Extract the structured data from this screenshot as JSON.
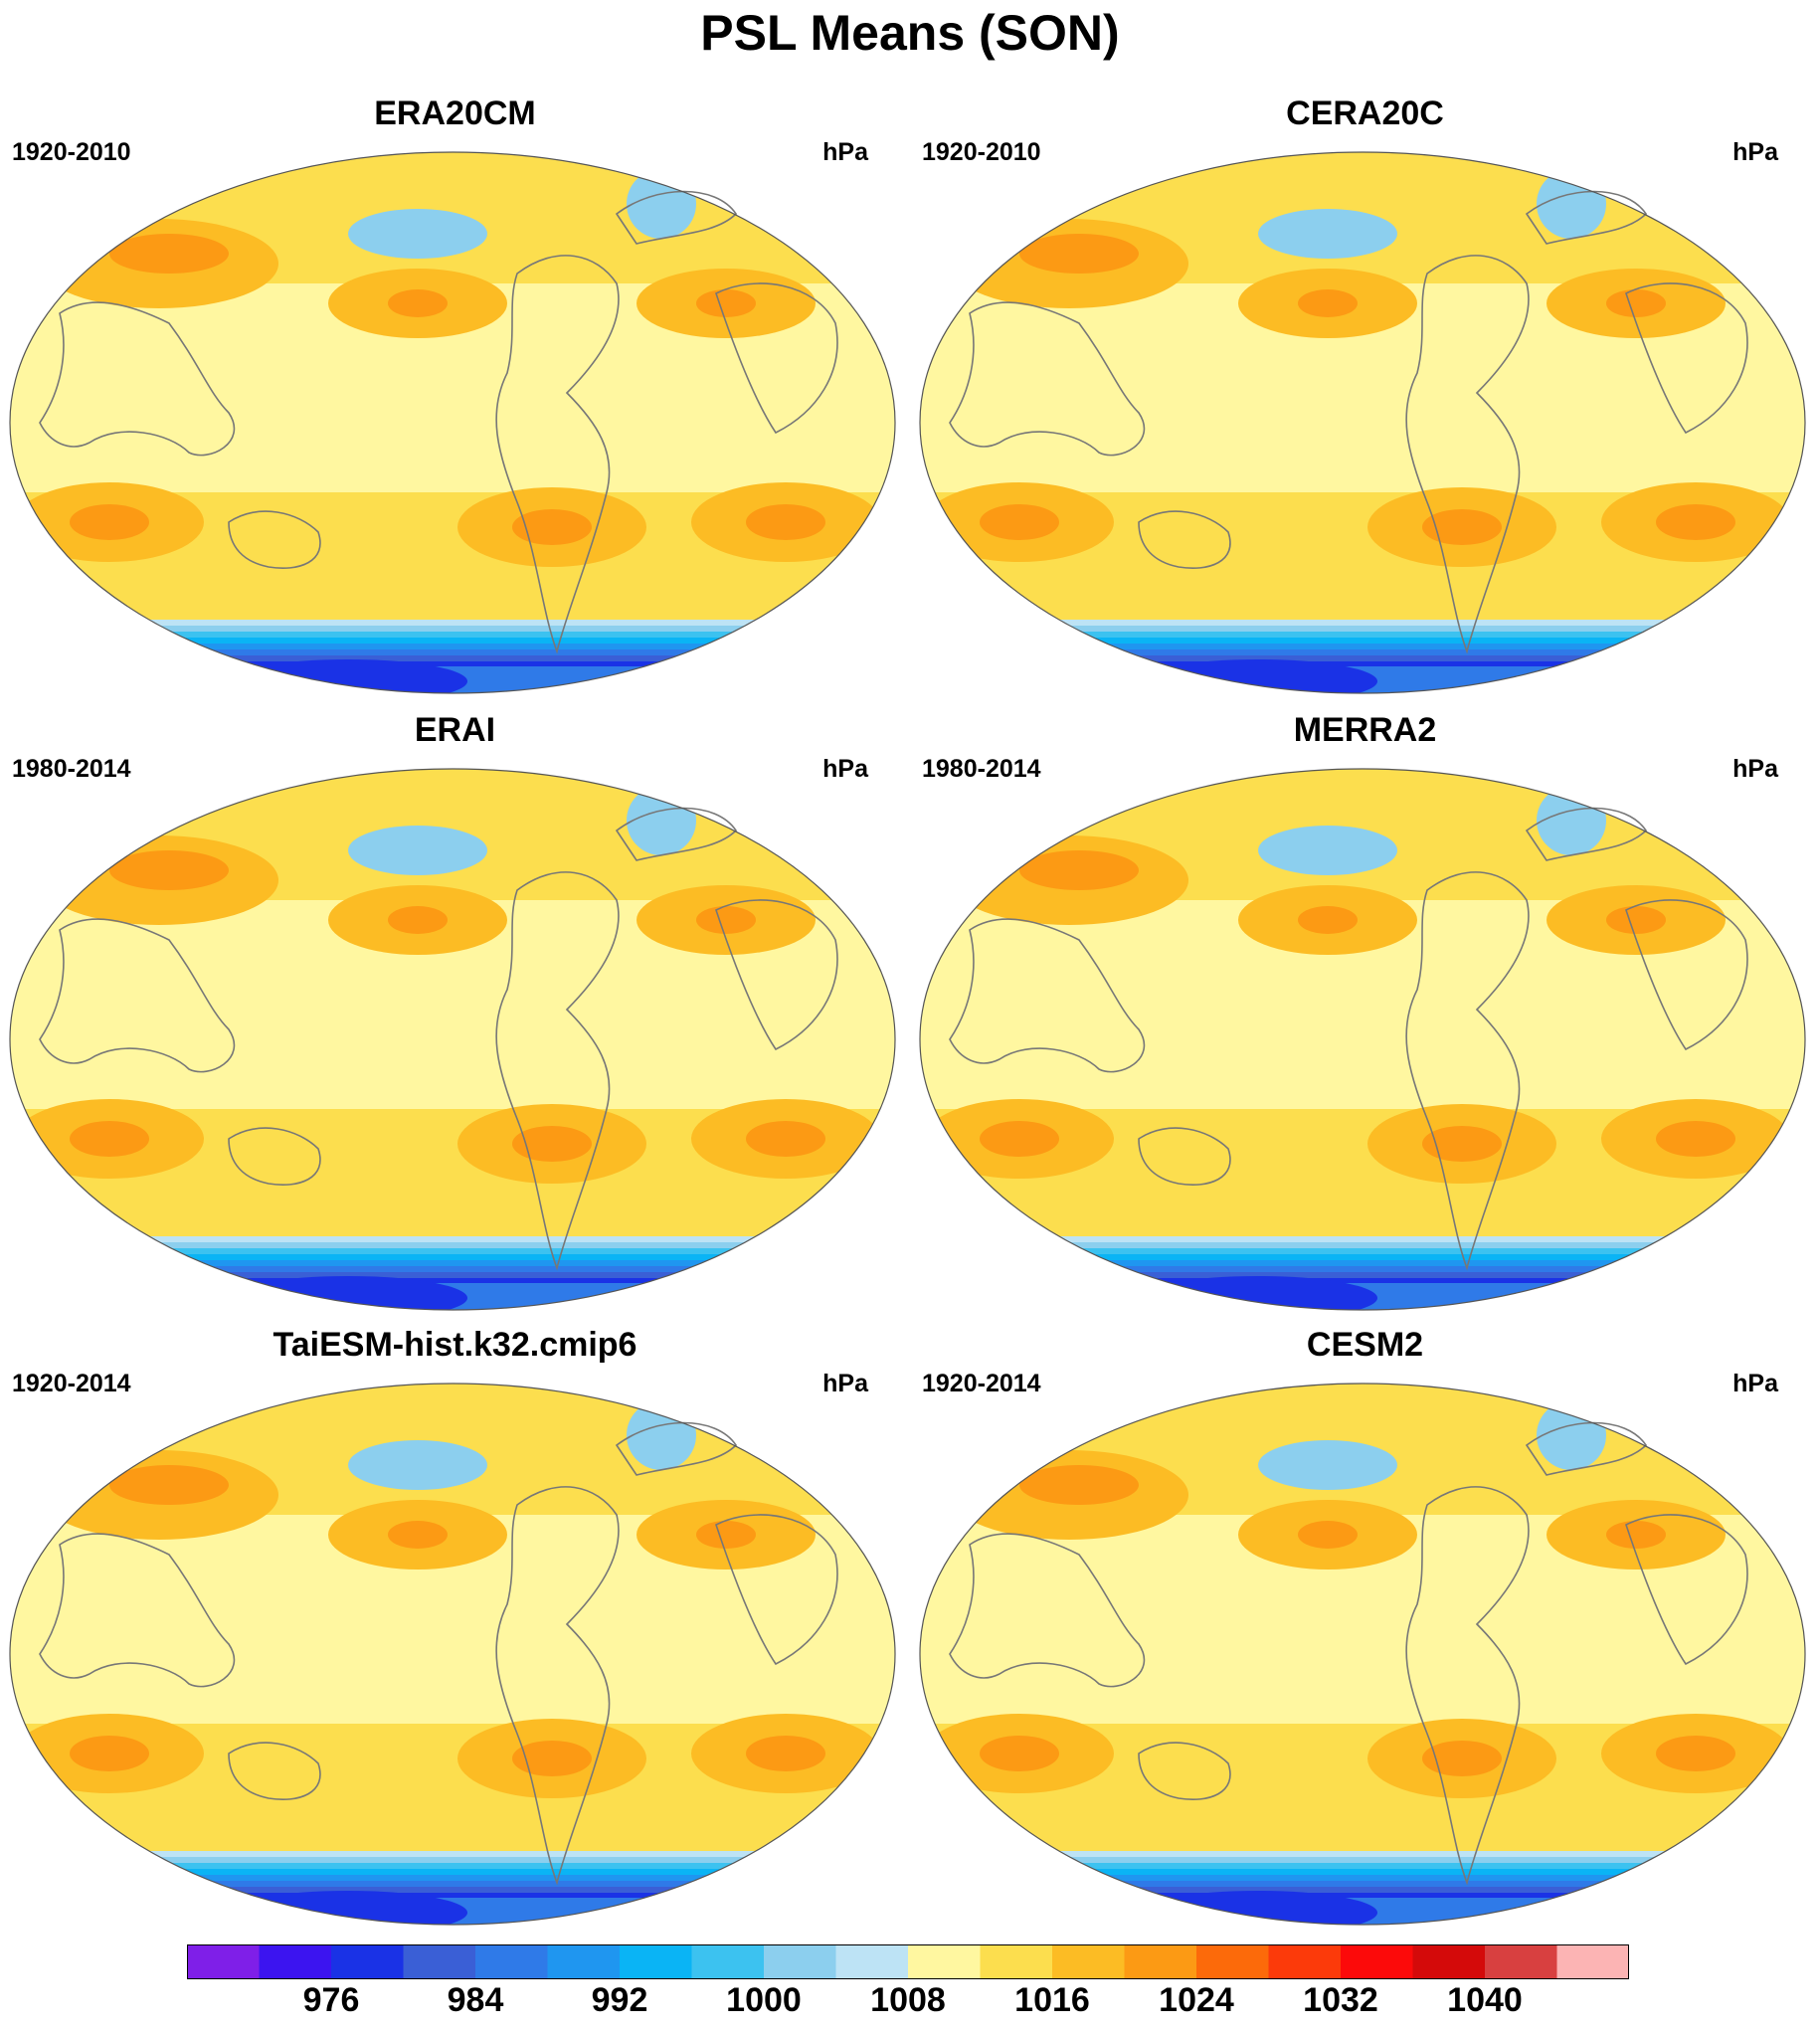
{
  "title": "PSL Means (SON)",
  "panels": [
    {
      "title": "ERA20CM",
      "period": "1920-2010",
      "units": "hPa"
    },
    {
      "title": "CERA20C",
      "period": "1920-2010",
      "units": "hPa"
    },
    {
      "title": "ERAI",
      "period": "1980-2014",
      "units": "hPa"
    },
    {
      "title": "MERRA2",
      "period": "1980-2014",
      "units": "hPa"
    },
    {
      "title": "TaiESM-hist.k32.cmip6",
      "period": "1920-2014",
      "units": "hPa"
    },
    {
      "title": "CESM2",
      "period": "1920-2014",
      "units": "hPa"
    }
  ],
  "colorbar": {
    "colors": [
      "#7f1fe8",
      "#3c14f0",
      "#1a32e6",
      "#3a5fd6",
      "#2f7ae8",
      "#1f96f0",
      "#0ab4f5",
      "#3cc2f0",
      "#8ccfee",
      "#bde3f5",
      "#fff7a0",
      "#fcde4e",
      "#fcbc24",
      "#fc9a14",
      "#fc6a0a",
      "#fc3a0a",
      "#fc0a0a",
      "#d40a0a",
      "#d84040",
      "#fcb4b4"
    ],
    "labels": [
      "976",
      "984",
      "992",
      "1000",
      "1008",
      "1016",
      "1024",
      "1032",
      "1040"
    ]
  },
  "colors": {
    "antarctic_low": "#2f7ae8",
    "subpolar": "#8ccfee",
    "tropics": "#fff7a0",
    "subtropical": "#fcde4e",
    "subtropical_high": "#fcbc24",
    "high_center": "#fc9a14",
    "coastline": "#777777"
  }
}
